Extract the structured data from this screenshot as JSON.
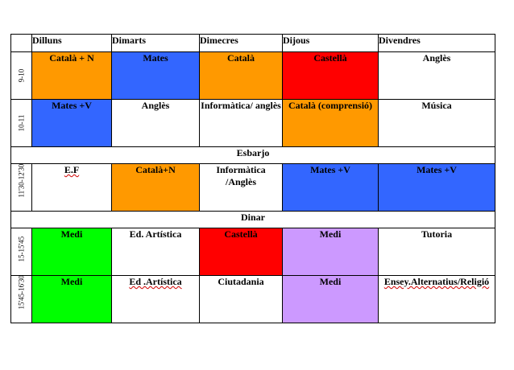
{
  "colors": {
    "orange": "#ff9900",
    "blue": "#3366ff",
    "red": "#ff0000",
    "green": "#00ff00",
    "purple": "#cc99ff",
    "white": "#ffffff"
  },
  "headers": [
    "",
    "Dilluns",
    "Dimarts",
    "Dimecres",
    "Dijous",
    "Divendres"
  ],
  "rows": [
    {
      "time": "9-10",
      "cells": [
        {
          "text": "Català + N",
          "color": "orange"
        },
        {
          "text": "Mates",
          "color": "blue"
        },
        {
          "text": "Català",
          "color": "orange"
        },
        {
          "text": "Castellà",
          "color": "red"
        },
        {
          "text": "Anglès",
          "color": "white"
        }
      ]
    },
    {
      "time": "10-11",
      "cells": [
        {
          "text": "Mates +V",
          "color": "blue"
        },
        {
          "text": "Anglès",
          "color": "white"
        },
        {
          "text": "Informàtica/ anglès",
          "color": "white"
        },
        {
          "text": "Català (comprensió)",
          "color": "orange"
        },
        {
          "text": "Música",
          "color": "white"
        }
      ]
    },
    {
      "band": "Esbarjo"
    },
    {
      "time": "11'30-12'30",
      "cells": [
        {
          "text": "E.F",
          "color": "white",
          "wavy": true
        },
        {
          "text": "Català+N",
          "color": "orange"
        },
        {
          "text": "Informàtica /Anglès",
          "color": "white"
        },
        {
          "text": "Mates +V",
          "color": "blue"
        },
        {
          "text": "Mates +V",
          "color": "blue"
        }
      ]
    },
    {
      "band": "Dinar"
    },
    {
      "time": "15-15'45",
      "cells": [
        {
          "text": "Medi",
          "color": "green"
        },
        {
          "text": "Ed. Artística",
          "color": "white"
        },
        {
          "text": "Castellà",
          "color": "red"
        },
        {
          "text": "Medi",
          "color": "purple"
        },
        {
          "text": "Tutoria",
          "color": "white"
        }
      ]
    },
    {
      "time": "15'45-16'30",
      "cells": [
        {
          "text": "Medi",
          "color": "green"
        },
        {
          "text": "Ed .Artística",
          "color": "white",
          "wavy": true
        },
        {
          "text": "Ciutadania",
          "color": "white"
        },
        {
          "text": "Medi",
          "color": "purple"
        },
        {
          "text": "Ensey.Alternatius/Religió",
          "color": "white",
          "wavy": true
        }
      ]
    }
  ]
}
